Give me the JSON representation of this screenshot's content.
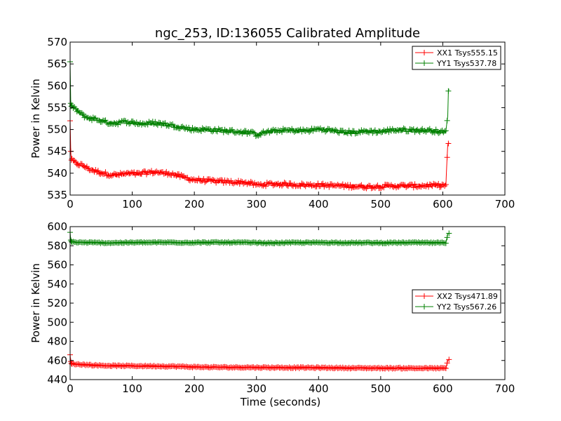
{
  "chart_data": [
    {
      "type": "line",
      "title": "ngc_253, ID:136055 Calibrated Amplitude",
      "xlabel": "",
      "ylabel": "Power in Kelvin",
      "xlim": [
        0,
        700
      ],
      "ylim": [
        535,
        570
      ],
      "xticks": [
        0,
        100,
        200,
        300,
        400,
        500,
        600,
        700
      ],
      "yticks": [
        535,
        540,
        545,
        550,
        555,
        560,
        565,
        570
      ],
      "grid": false,
      "legend": "top-right",
      "series": [
        {
          "name": "XX1 Tsys555.15",
          "color": "#ff0000",
          "marker": "+",
          "x": [
            0,
            1,
            2,
            5,
            10,
            20,
            30,
            40,
            50,
            60,
            70,
            80,
            90,
            100,
            110,
            120,
            130,
            140,
            150,
            160,
            170,
            180,
            190,
            200,
            220,
            240,
            260,
            280,
            290,
            300,
            310,
            320,
            340,
            360,
            380,
            400,
            420,
            440,
            460,
            480,
            500,
            520,
            540,
            560,
            580,
            600,
            605,
            608,
            609,
            610
          ],
          "y": [
            552,
            545,
            543,
            542.8,
            542.2,
            541.8,
            541,
            540.5,
            540.1,
            539.8,
            539.6,
            539.7,
            539.9,
            539.9,
            539.8,
            540.1,
            540.2,
            540.3,
            540,
            540,
            539.6,
            539.2,
            538.8,
            538.5,
            538.3,
            538.1,
            538,
            537.9,
            537.7,
            537.3,
            537.4,
            537.5,
            537.5,
            537.4,
            537.3,
            537.3,
            537.2,
            537.1,
            537,
            536.9,
            537,
            537.1,
            537.1,
            537.1,
            537.2,
            537.2,
            537.3,
            546.5,
            546.8,
            547
          ]
        },
        {
          "name": "YY1 Tsys537.78",
          "color": "#008000",
          "marker": "+",
          "x": [
            0,
            1,
            2,
            5,
            10,
            20,
            30,
            40,
            50,
            60,
            70,
            80,
            90,
            100,
            110,
            120,
            130,
            140,
            150,
            160,
            170,
            180,
            190,
            200,
            220,
            240,
            260,
            280,
            290,
            300,
            310,
            320,
            340,
            360,
            380,
            400,
            420,
            440,
            460,
            480,
            500,
            520,
            540,
            560,
            580,
            600,
            605,
            608,
            609,
            610
          ],
          "y": [
            565.5,
            556,
            555.3,
            555,
            554.5,
            553.3,
            552.6,
            552.4,
            552,
            551.6,
            551.4,
            551.6,
            551.8,
            551.6,
            551.4,
            551.3,
            551.5,
            551.4,
            551.3,
            551,
            550.8,
            550.5,
            550.2,
            550,
            550,
            549.8,
            549.6,
            549.4,
            549.3,
            548.8,
            549.2,
            549.5,
            549.8,
            549.8,
            549.7,
            550.1,
            549.8,
            549.4,
            549.4,
            549.6,
            549.5,
            549.9,
            549.9,
            549.8,
            549.8,
            549.4,
            549.5,
            553,
            558.8,
            559.3
          ]
        }
      ]
    },
    {
      "type": "line",
      "title": "",
      "xlabel": "Time (seconds)",
      "ylabel": "Power in Kelvin",
      "xlim": [
        0,
        700
      ],
      "ylim": [
        440,
        600
      ],
      "xticks": [
        0,
        100,
        200,
        300,
        400,
        500,
        600,
        700
      ],
      "yticks": [
        440,
        460,
        480,
        500,
        520,
        540,
        560,
        580,
        600
      ],
      "grid": false,
      "legend": "center-right",
      "series": [
        {
          "name": "XX2 Tsys471.89",
          "color": "#ff0000",
          "marker": "+",
          "x": [
            0,
            1,
            2,
            5,
            10,
            20,
            40,
            60,
            80,
            100,
            120,
            140,
            160,
            180,
            200,
            220,
            240,
            260,
            280,
            300,
            320,
            340,
            360,
            380,
            400,
            420,
            440,
            460,
            480,
            500,
            520,
            540,
            560,
            580,
            600,
            605,
            608,
            610
          ],
          "y": [
            466,
            459,
            457,
            456.5,
            456,
            455.8,
            455,
            454.6,
            454.4,
            454.3,
            454.2,
            454.1,
            453.9,
            453.6,
            453.2,
            453,
            452.9,
            452.8,
            452.8,
            452.7,
            452.6,
            452.6,
            452.5,
            452.5,
            452.4,
            452.3,
            452.2,
            452.1,
            452.1,
            452,
            452,
            452,
            451.9,
            451.9,
            451.9,
            451.8,
            460,
            461
          ]
        },
        {
          "name": "YY2 Tsys567.26",
          "color": "#008000",
          "marker": "+",
          "x": [
            0,
            1,
            2,
            5,
            10,
            20,
            40,
            60,
            80,
            100,
            120,
            140,
            160,
            180,
            200,
            220,
            240,
            260,
            280,
            300,
            320,
            340,
            360,
            380,
            400,
            420,
            440,
            460,
            480,
            500,
            520,
            540,
            560,
            580,
            600,
            605,
            608,
            610
          ],
          "y": [
            594,
            586,
            584.5,
            584,
            583.6,
            583.4,
            583.2,
            583,
            583.2,
            583.3,
            583.4,
            583.4,
            583.5,
            583.4,
            583.3,
            583.4,
            583.4,
            583.4,
            583.3,
            583.1,
            582.8,
            583.1,
            583.2,
            583.2,
            583.3,
            583.3,
            583.2,
            583.1,
            583.1,
            583,
            583.1,
            583.2,
            583.2,
            583.1,
            583,
            583,
            592.5,
            593
          ]
        }
      ]
    }
  ]
}
